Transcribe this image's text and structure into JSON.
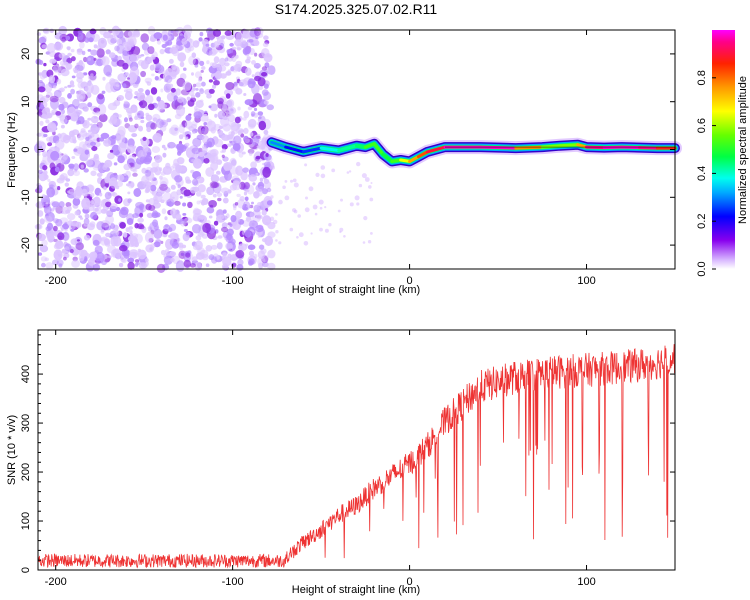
{
  "chart_data": [
    {
      "type": "heatmap",
      "title": "S174.2025.325.07.02.R11",
      "xlabel": "Height of straight line (km)",
      "ylabel": "Frequency (Hz)",
      "xlim": [
        -210,
        150
      ],
      "ylim": [
        -25,
        25
      ],
      "x_ticks": [
        -200,
        -100,
        0,
        100
      ],
      "x_tick_labels": [
        "-200",
        "-100",
        "0",
        "100"
      ],
      "y_ticks": [
        -20,
        -10,
        0,
        10,
        20
      ],
      "y_tick_labels": [
        "-20",
        "-10",
        "0",
        "10",
        "20"
      ],
      "noise_region_x": [
        -210,
        -78
      ],
      "ridge": {
        "x": [
          -78,
          -70,
          -60,
          -50,
          -40,
          -30,
          -25,
          -20,
          -15,
          -10,
          -5,
          0,
          5,
          10,
          20,
          40,
          60,
          75,
          85,
          95,
          100,
          110,
          120,
          130,
          140,
          150
        ],
        "freq": [
          1.5,
          0.5,
          -0.5,
          0.3,
          -0.2,
          0.8,
          0.5,
          1.2,
          -1.0,
          -2.5,
          -2.2,
          -2.5,
          -1.5,
          -0.5,
          0.5,
          0.5,
          0.3,
          0.5,
          0.8,
          1.0,
          0.5,
          0.4,
          0.5,
          0.4,
          0.3,
          0.3
        ],
        "amp": [
          0.35,
          0.25,
          0.2,
          0.3,
          0.45,
          0.4,
          0.5,
          0.55,
          0.5,
          0.45,
          0.6,
          0.7,
          0.8,
          0.85,
          0.95,
          1.0,
          0.95,
          0.6,
          0.55,
          0.6,
          0.9,
          1.0,
          0.95,
          1.0,
          0.9,
          0.85
        ]
      }
    },
    {
      "type": "bar",
      "title": "",
      "colorbar_label": "Normalized spectral amplitude",
      "vlim": [
        0,
        1
      ],
      "ticks": [
        0.0,
        0.2,
        0.4,
        0.6,
        0.8
      ],
      "tick_labels": [
        "0.0",
        "0.2",
        "0.4",
        "0.6",
        "0.8"
      ]
    },
    {
      "type": "line",
      "title": "",
      "xlabel": "Height of straight line (km)",
      "ylabel": "SNR (10 * v/v)",
      "xlim": [
        -210,
        150
      ],
      "ylim": [
        0,
        490
      ],
      "x_ticks": [
        -200,
        -100,
        0,
        100
      ],
      "x_tick_labels": [
        "-200",
        "-100",
        "0",
        "100"
      ],
      "y_ticks": [
        0,
        100,
        200,
        300,
        400
      ],
      "y_tick_labels": [
        "0",
        "100",
        "200",
        "300",
        "400"
      ],
      "series": [
        {
          "name": "SNR",
          "color": "#ee3333",
          "x": [
            -210,
            -180,
            -150,
            -120,
            -90,
            -70,
            -60,
            -50,
            -40,
            -30,
            -20,
            -10,
            0,
            10,
            20,
            30,
            40,
            50,
            60,
            80,
            100,
            120,
            140,
            150
          ],
          "values": [
            18,
            18,
            18,
            18,
            20,
            25,
            55,
            80,
            110,
            130,
            165,
            190,
            215,
            250,
            300,
            335,
            370,
            380,
            390,
            400,
            405,
            410,
            420,
            430
          ]
        }
      ]
    }
  ]
}
